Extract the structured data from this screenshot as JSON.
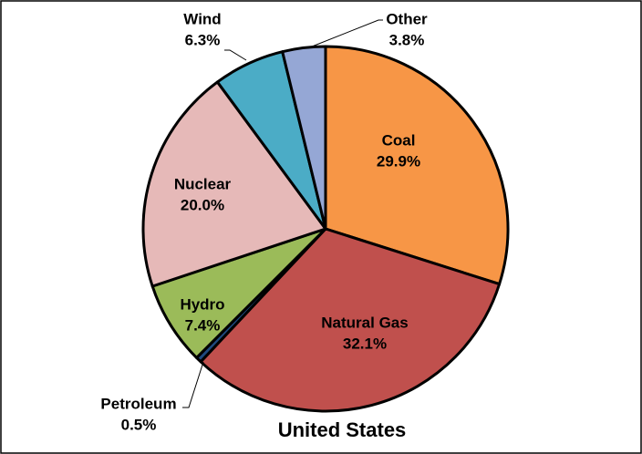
{
  "chart_data": {
    "type": "pie",
    "title": "United States",
    "categories": [
      "Coal",
      "Natural Gas",
      "Petroleum",
      "Hydro",
      "Nuclear",
      "Wind",
      "Other"
    ],
    "values": [
      29.9,
      32.1,
      0.5,
      7.4,
      20.0,
      6.3,
      3.8
    ],
    "value_labels": [
      "29.9%",
      "32.1%",
      "0.5%",
      "7.4%",
      "20.0%",
      "6.3%",
      "3.8%"
    ],
    "colors": [
      "#f79646",
      "#c0504d",
      "#1f497d",
      "#9bbb59",
      "#e6b9b8",
      "#4bacc6",
      "#95a7d5"
    ]
  }
}
